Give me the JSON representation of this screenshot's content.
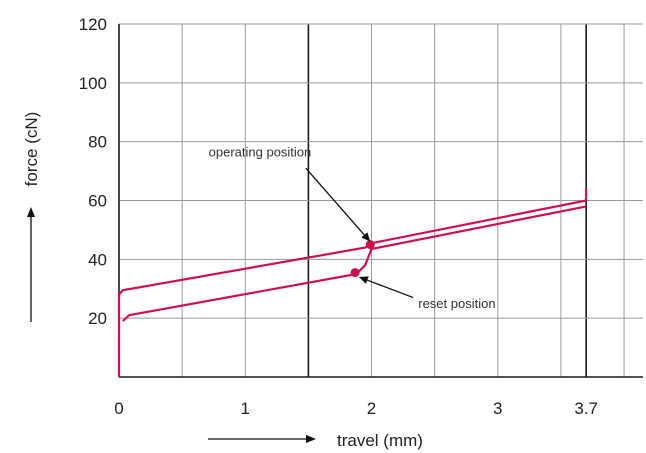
{
  "chart_data": {
    "type": "line",
    "xlabel": "travel (mm)",
    "ylabel": "force (cN)",
    "xlim": [
      0,
      4.15
    ],
    "ylim": [
      0,
      120
    ],
    "x_ticks": [
      {
        "value": 0,
        "label": "0"
      },
      {
        "value": 1,
        "label": "1"
      },
      {
        "value": 2,
        "label": "2"
      },
      {
        "value": 3,
        "label": "3"
      },
      {
        "value": 3.7,
        "label": "3.7"
      }
    ],
    "y_ticks": [
      {
        "value": 0,
        "label": ""
      },
      {
        "value": 20,
        "label": "20"
      },
      {
        "value": 40,
        "label": "40"
      },
      {
        "value": 60,
        "label": "60"
      },
      {
        "value": 80,
        "label": "80"
      },
      {
        "value": 100,
        "label": "100"
      },
      {
        "value": 120,
        "label": "120"
      }
    ],
    "grid": true,
    "grid_x_values": [
      0.5,
      1,
      1.5,
      2,
      2.5,
      3,
      3.5,
      3.7,
      4
    ],
    "grid_major_x": [
      1.5,
      3.7
    ],
    "grid_y_values": [
      20,
      40,
      60,
      80,
      100,
      120
    ],
    "series": [
      {
        "color": "#d0104c",
        "x": [
          0,
          0,
          0.03,
          1.95,
          2.0,
          3.7,
          3.7
        ],
        "y": [
          0,
          28,
          29.5,
          44,
          45.5,
          60,
          64
        ]
      },
      {
        "color": "#d0104c",
        "x": [
          0.03,
          0.08,
          1.88,
          1.95,
          2.0,
          3.7
        ],
        "y": [
          19,
          21,
          35,
          38,
          43.5,
          58
        ]
      }
    ],
    "markers": [
      {
        "x": 1.99,
        "y": 45,
        "color": "#d0104c"
      },
      {
        "x": 1.87,
        "y": 35.5,
        "color": "#d0104c"
      }
    ],
    "annotations": [
      {
        "text": "operating position",
        "text_x": 0.71,
        "text_y": 75,
        "target_x": 1.99,
        "target_y": 46
      },
      {
        "text": "reset position",
        "text_x": 2.37,
        "text_y": 23.5,
        "target_x": 1.9,
        "target_y": 34
      }
    ]
  }
}
